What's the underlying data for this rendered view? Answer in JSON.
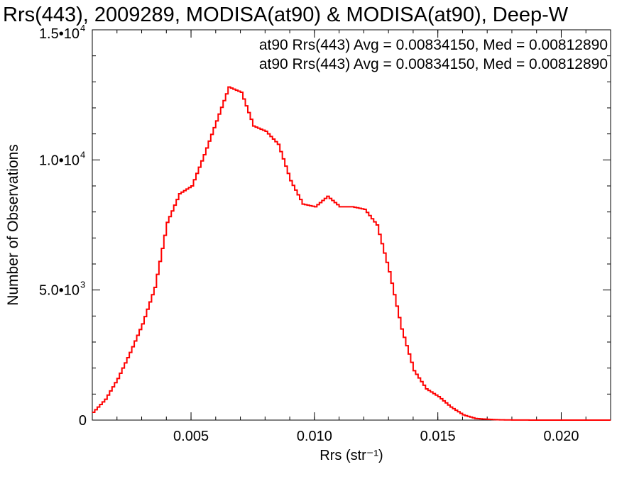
{
  "chart_data": {
    "type": "line",
    "title": "Rrs(443), 2009289, MODISA(at90) & MODISA(at90), Deep-W",
    "xlabel": "Rrs (str⁻¹)",
    "ylabel": "Number of Observations",
    "xlim": [
      0.001,
      0.022
    ],
    "ylim": [
      0,
      15000
    ],
    "x_ticks": [
      0.005,
      0.01,
      0.015,
      0.02
    ],
    "x_tick_labels": [
      "0.005",
      "0.010",
      "0.015",
      "0.020"
    ],
    "y_ticks": [
      0,
      5000,
      10000,
      15000
    ],
    "y_tick_labels": [
      {
        "mant": "0",
        "exp": ""
      },
      {
        "mant": "5.0•10",
        "exp": "3"
      },
      {
        "mant": "1.0•10",
        "exp": "4"
      },
      {
        "mant": "1.5•10",
        "exp": "4"
      }
    ],
    "annotations": [
      {
        "text": "at90 Rrs(443) Avg = 0.00834150, Med = 0.00812890",
        "color": "#000000"
      },
      {
        "text": "at90 Rrs(443) Avg = 0.00834150, Med = 0.00812890",
        "color": "#ff0000"
      }
    ],
    "series": [
      {
        "color": "#ff0000",
        "style": "histogram-step",
        "x": [
          0.001,
          0.0015,
          0.002,
          0.0025,
          0.003,
          0.0035,
          0.004,
          0.0045,
          0.005,
          0.0055,
          0.006,
          0.0065,
          0.007,
          0.0075,
          0.008,
          0.0085,
          0.009,
          0.0095,
          0.01,
          0.0105,
          0.011,
          0.0115,
          0.012,
          0.0125,
          0.013,
          0.0135,
          0.014,
          0.0145,
          0.015,
          0.0155,
          0.016,
          0.0165,
          0.017,
          0.0175,
          0.018,
          0.019,
          0.02,
          0.021,
          0.022
        ],
        "y": [
          300,
          800,
          1600,
          2600,
          3700,
          5100,
          7600,
          8700,
          9000,
          10200,
          11500,
          12800,
          12600,
          11300,
          11100,
          10600,
          9200,
          8300,
          8200,
          8600,
          8200,
          8200,
          8100,
          7500,
          5700,
          3500,
          1900,
          1200,
          900,
          500,
          200,
          60,
          30,
          10,
          5,
          0,
          0,
          0,
          0
        ]
      }
    ]
  }
}
